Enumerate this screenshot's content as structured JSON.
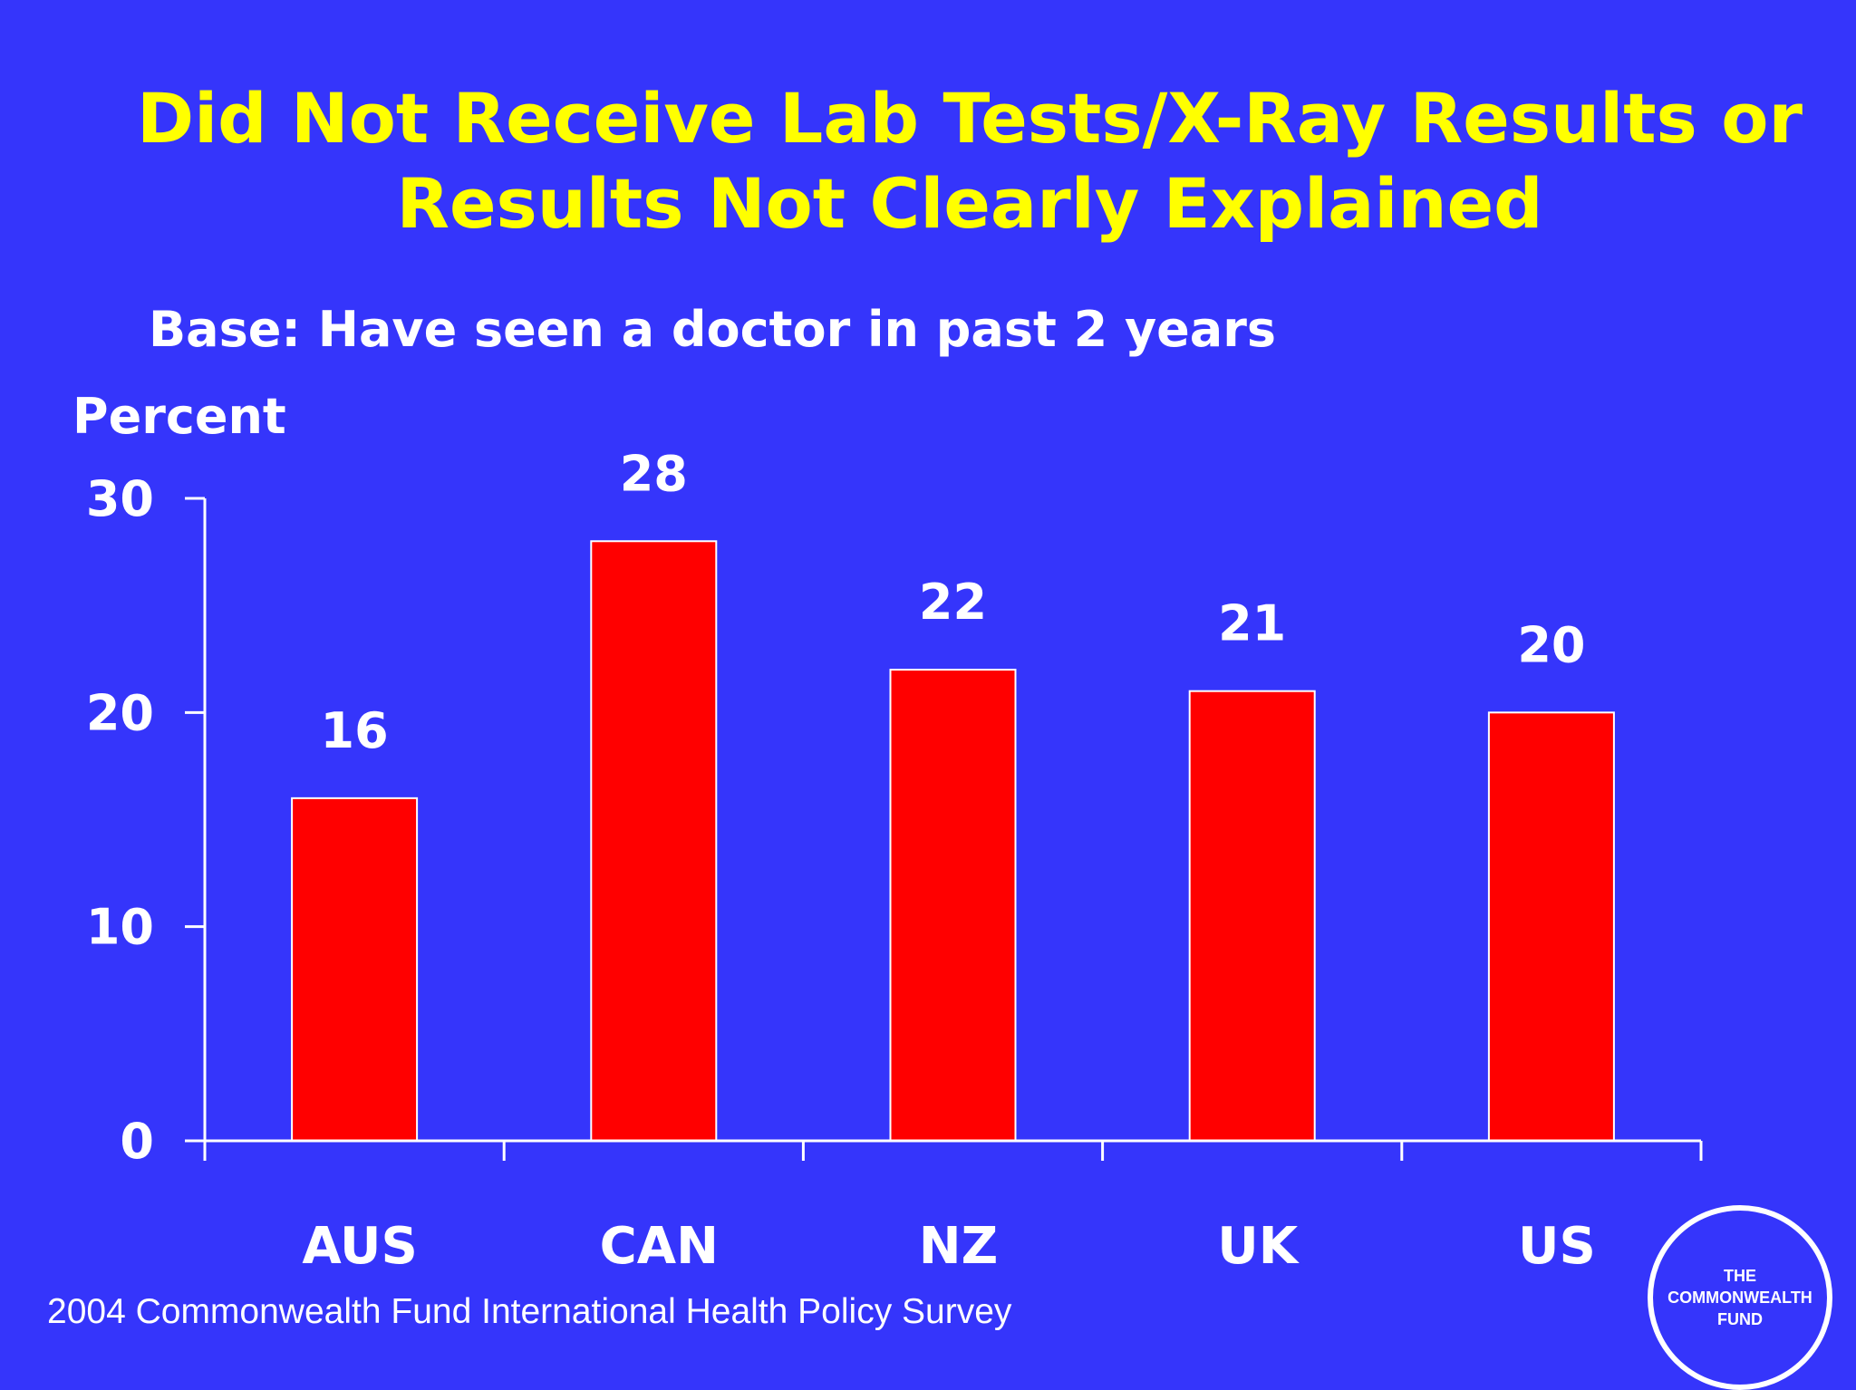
{
  "slide": {
    "title_line1": "Did Not Receive Lab Tests/X-Ray Results or",
    "title_line2": "Results Not Clearly Explained",
    "source": "2004 Commonwealth Fund International Health Policy Survey",
    "logo_text": "THE\nCOMMONWEALTH\nFUND"
  },
  "colors": {
    "background": "#3535fb",
    "title": "#ffff00",
    "bar": "#ff0000",
    "text": "#ffffff"
  },
  "chart_data": {
    "type": "bar",
    "title": "Did Not Receive Lab Tests/X-Ray Results or Results Not Clearly Explained",
    "subtitle": "Base: Have seen a doctor in past 2 years",
    "ylabel": "Percent",
    "xlabel": "",
    "categories": [
      "AUS",
      "CAN",
      "NZ",
      "UK",
      "US"
    ],
    "values": [
      16,
      28,
      22,
      21,
      20
    ],
    "data_labels": [
      "16",
      "28",
      "22",
      "21",
      "20"
    ],
    "ylim": [
      0,
      30
    ],
    "yticks": [
      0,
      10,
      20,
      30
    ],
    "ytick_labels": [
      "0",
      "10",
      "20",
      "30"
    ],
    "grid": false,
    "legend": "none"
  }
}
